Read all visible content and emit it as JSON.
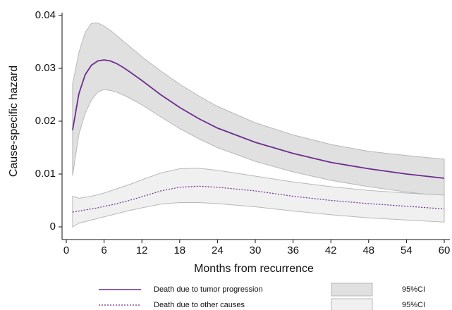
{
  "chart_data": {
    "type": "line",
    "xlabel": "Months from recurrence",
    "ylabel": "Cause-specific hazard",
    "x": [
      1,
      2,
      3,
      4,
      5,
      6,
      7,
      8,
      9,
      10,
      12,
      15,
      18,
      21,
      24,
      30,
      36,
      42,
      48,
      54,
      60
    ],
    "xlim": [
      0,
      60
    ],
    "xticks": [
      0,
      6,
      12,
      18,
      24,
      30,
      36,
      42,
      48,
      54,
      60
    ],
    "ylim": [
      0,
      0.04
    ],
    "yticks": [
      0,
      0.01,
      0.02,
      0.03,
      0.04
    ],
    "grid": false,
    "series": [
      {
        "name": "Death due to tumor progression",
        "color": "#6b2d8f",
        "dash": "solid",
        "ci_label": "95%CI",
        "ci_color": "#e0e0e0",
        "values": [
          0.0183,
          0.0252,
          0.0288,
          0.0306,
          0.0314,
          0.0316,
          0.0314,
          0.0309,
          0.0302,
          0.0294,
          0.0277,
          0.025,
          0.0226,
          0.0205,
          0.0187,
          0.016,
          0.0139,
          0.0122,
          0.011,
          0.01,
          0.0092
        ],
        "upper": [
          0.027,
          0.033,
          0.0368,
          0.0385,
          0.0386,
          0.038,
          0.0372,
          0.0362,
          0.0352,
          0.0342,
          0.0322,
          0.0295,
          0.027,
          0.0248,
          0.0228,
          0.0197,
          0.0174,
          0.0156,
          0.0143,
          0.0135,
          0.0128
        ],
        "lower": [
          0.0097,
          0.0175,
          0.0215,
          0.024,
          0.0255,
          0.026,
          0.0258,
          0.0255,
          0.025,
          0.0244,
          0.0231,
          0.0208,
          0.0186,
          0.0167,
          0.015,
          0.0124,
          0.0104,
          0.0088,
          0.0076,
          0.0066,
          0.0058
        ]
      },
      {
        "name": "Death due to other causes",
        "color": "#6b2d8f",
        "dash": "dotted",
        "ci_label": "95%CI",
        "ci_color": "#f0f0f0",
        "values": [
          0.0028,
          0.003,
          0.0032,
          0.0034,
          0.0036,
          0.0039,
          0.0041,
          0.0044,
          0.0047,
          0.005,
          0.0057,
          0.0068,
          0.0075,
          0.0077,
          0.0075,
          0.0068,
          0.0058,
          0.005,
          0.0044,
          0.0039,
          0.0034
        ],
        "upper": [
          0.0058,
          0.0054,
          0.0056,
          0.0058,
          0.0061,
          0.0064,
          0.0068,
          0.0072,
          0.0076,
          0.008,
          0.0089,
          0.0102,
          0.011,
          0.0111,
          0.0107,
          0.0096,
          0.0085,
          0.0076,
          0.0069,
          0.0064,
          0.006
        ],
        "lower": [
          0.0,
          0.0007,
          0.001,
          0.0013,
          0.0016,
          0.0019,
          0.0022,
          0.0025,
          0.0028,
          0.0031,
          0.0036,
          0.0043,
          0.0046,
          0.0046,
          0.0044,
          0.0038,
          0.003,
          0.0023,
          0.0017,
          0.0013,
          0.0009
        ]
      }
    ]
  }
}
